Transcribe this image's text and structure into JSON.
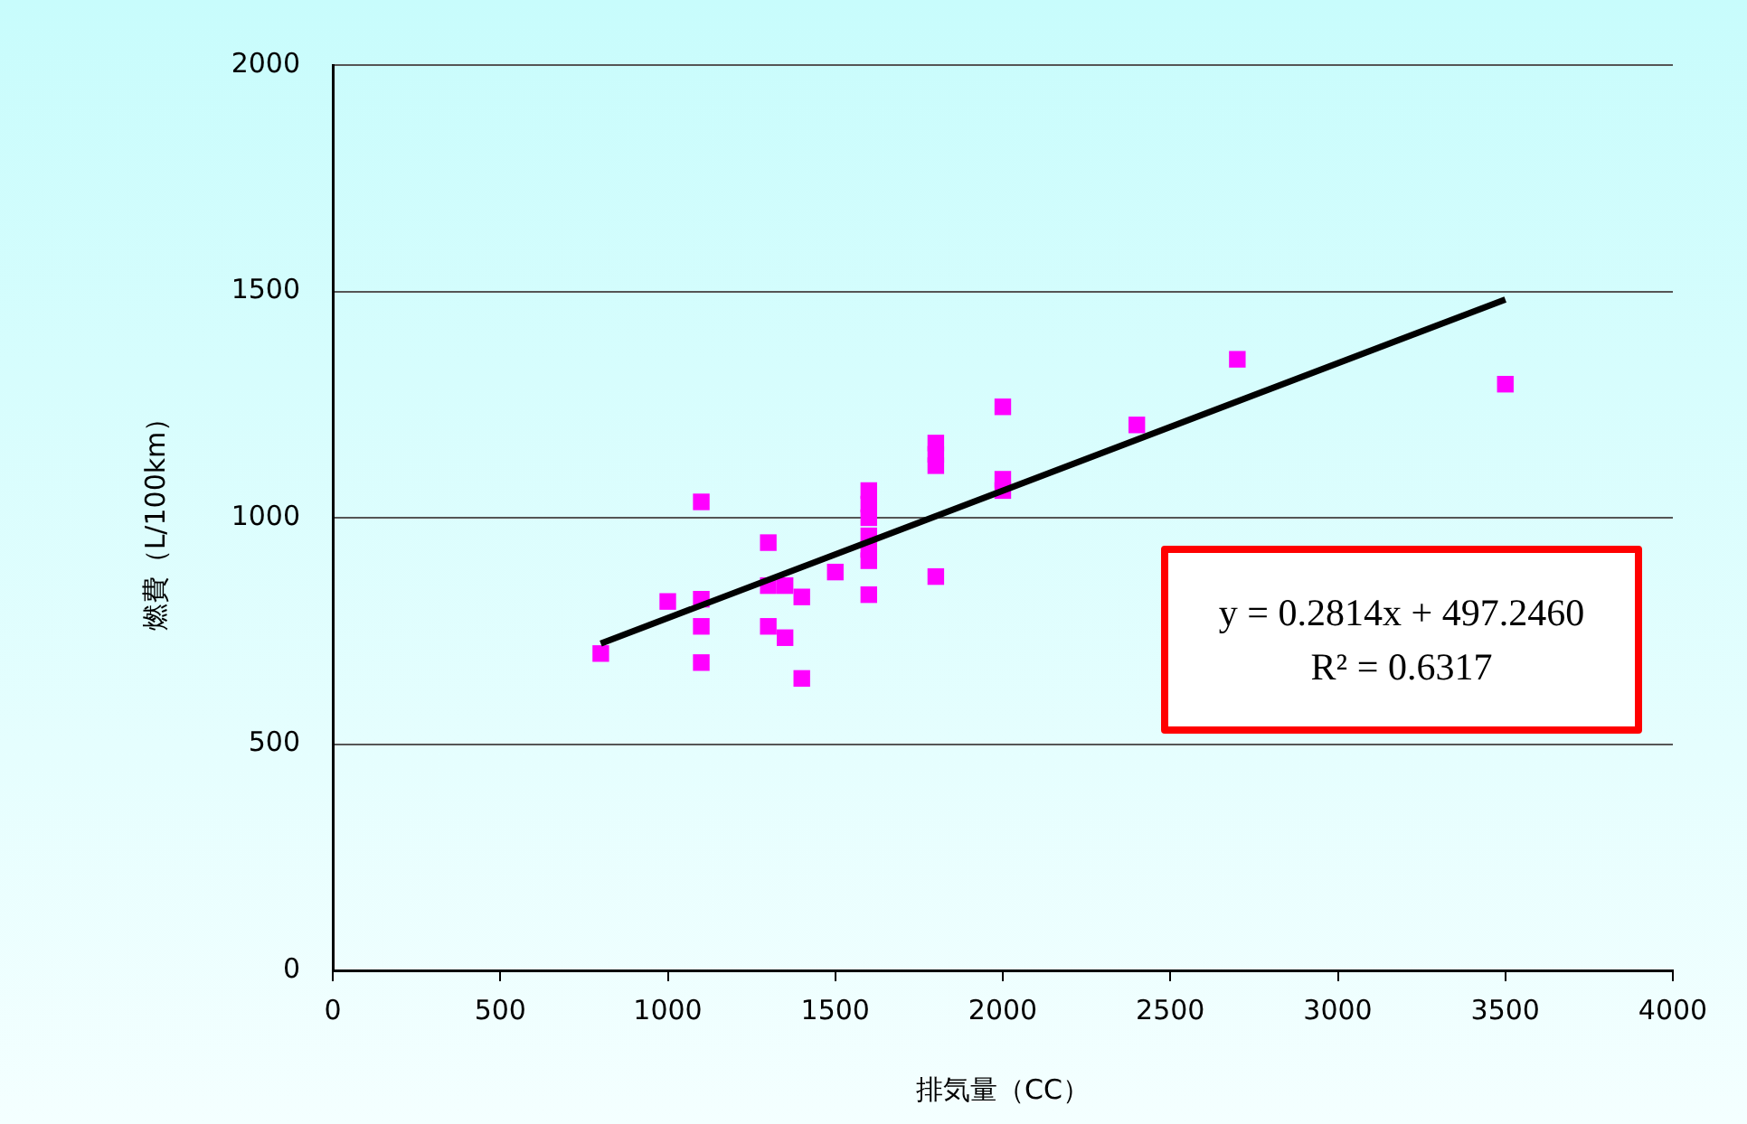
{
  "chart_data": {
    "type": "scatter",
    "xlabel": "排気量（CC）",
    "ylabel": "燃費（L/100km）",
    "xlim": [
      0,
      4000
    ],
    "xticks": [
      0,
      500,
      1000,
      1500,
      2000,
      2500,
      3000,
      3500,
      4000
    ],
    "ylim": [
      0,
      2000
    ],
    "yticks": [
      0,
      500,
      1000,
      1500,
      2000
    ],
    "grid": "y",
    "legend": false,
    "marker": "square",
    "annotations": [
      "y = 0.2814x + 497.2460",
      "R² = 0.6317"
    ],
    "series": [
      {
        "color": "#ff00ff",
        "x": [
          800,
          1000,
          1100,
          1100,
          1100,
          1100,
          1300,
          1300,
          1300,
          1350,
          1350,
          1400,
          1400,
          1500,
          1600,
          1600,
          1600,
          1600,
          1600,
          1600,
          1600,
          1800,
          1800,
          1800,
          1800,
          2000,
          2000,
          2000,
          2400,
          2700,
          3500
        ],
        "values": [
          700,
          815,
          1035,
          820,
          760,
          680,
          945,
          850,
          760,
          850,
          735,
          825,
          645,
          880,
          1060,
          1030,
          1000,
          960,
          930,
          905,
          830,
          1165,
          1140,
          1115,
          870,
          1245,
          1085,
          1060,
          1205,
          1350,
          1295
        ]
      },
      {
        "type": "line",
        "color": "#000000",
        "marker": "none",
        "x": [
          800,
          3500
        ],
        "values": [
          722,
          1482
        ]
      }
    ]
  }
}
